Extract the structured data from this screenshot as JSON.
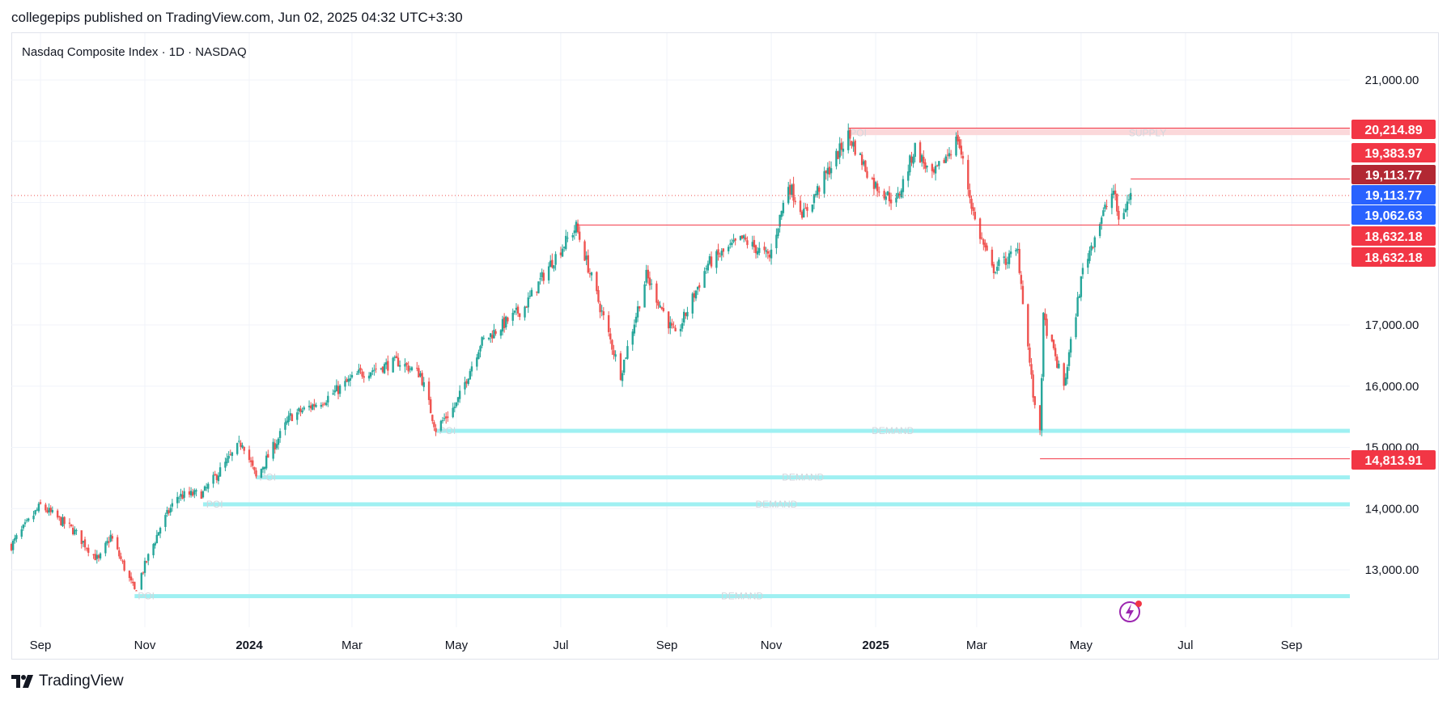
{
  "header": {
    "publisher_line": "collegepips published on TradingView.com, Jun 02, 2025 04:32 UTC+3:30"
  },
  "footer": {
    "brand": "TradingView",
    "logo_icon": "tradingview-logo-icon"
  },
  "colors": {
    "up": "#26a69a",
    "down": "#ef5350",
    "level_line": "#f23645",
    "demand_zone": "#9ff0f2",
    "grid": "#f0f3fa",
    "price_tag_red": "#f23645",
    "price_tag_darkred": "#b22833",
    "price_tag_blue": "#2962ff"
  },
  "chart_data": {
    "type": "candlestick",
    "title": "Nasdaq Composite Index · 1D · NASDAQ",
    "ylim": [
      12300,
      21700
    ],
    "y_ticks": [
      "21,000.00",
      "17,000.00",
      "16,000.00",
      "15,000.00",
      "14,000.00",
      "13,000.00"
    ],
    "y_tick_values": [
      21000,
      17000,
      16000,
      15000,
      14000,
      13000
    ],
    "x_ticks": [
      {
        "label": "Sep",
        "date": "2023-09-01",
        "bold": false
      },
      {
        "label": "Nov",
        "date": "2023-11-01",
        "bold": false
      },
      {
        "label": "2024",
        "date": "2024-01-01",
        "bold": true
      },
      {
        "label": "Mar",
        "date": "2024-03-01",
        "bold": false
      },
      {
        "label": "May",
        "date": "2024-05-01",
        "bold": false
      },
      {
        "label": "Jul",
        "date": "2024-07-01",
        "bold": false
      },
      {
        "label": "Sep",
        "date": "2024-09-01",
        "bold": false
      },
      {
        "label": "Nov",
        "date": "2024-11-01",
        "bold": false
      },
      {
        "label": "2025",
        "date": "2025-01-01",
        "bold": true
      },
      {
        "label": "Mar",
        "date": "2025-03-01",
        "bold": false
      },
      {
        "label": "May",
        "date": "2025-05-01",
        "bold": false
      },
      {
        "label": "Jul",
        "date": "2025-07-01",
        "bold": false
      },
      {
        "label": "Sep",
        "date": "2025-09-01",
        "bold": false
      }
    ],
    "price_path": [
      [
        "2023-08-15",
        13400
      ],
      [
        "2023-09-01",
        14050
      ],
      [
        "2023-09-20",
        13650
      ],
      [
        "2023-10-05",
        13150
      ],
      [
        "2023-10-12",
        13550
      ],
      [
        "2023-10-26",
        12650
      ],
      [
        "2023-11-10",
        13700
      ],
      [
        "2023-11-20",
        14200
      ],
      [
        "2023-12-05",
        14250
      ],
      [
        "2023-12-28",
        15100
      ],
      [
        "2024-01-05",
        14500
      ],
      [
        "2024-01-25",
        15500
      ],
      [
        "2024-02-15",
        15800
      ],
      [
        "2024-03-05",
        16200
      ],
      [
        "2024-03-28",
        16400
      ],
      [
        "2024-04-10",
        16200
      ],
      [
        "2024-04-19",
        15300
      ],
      [
        "2024-05-01",
        15700
      ],
      [
        "2024-05-15",
        16700
      ],
      [
        "2024-06-10",
        17300
      ],
      [
        "2024-06-25",
        18000
      ],
      [
        "2024-07-10",
        18600
      ],
      [
        "2024-07-25",
        17200
      ],
      [
        "2024-08-05",
        16200
      ],
      [
        "2024-08-20",
        17800
      ],
      [
        "2024-09-06",
        16800
      ],
      [
        "2024-09-25",
        18000
      ],
      [
        "2024-10-15",
        18400
      ],
      [
        "2024-10-31",
        18100
      ],
      [
        "2024-11-11",
        19300
      ],
      [
        "2024-11-20",
        18800
      ],
      [
        "2024-12-02",
        19400
      ],
      [
        "2024-12-16",
        20100
      ],
      [
        "2024-12-31",
        19300
      ],
      [
        "2025-01-13",
        19000
      ],
      [
        "2025-01-24",
        19900
      ],
      [
        "2025-02-03",
        19400
      ],
      [
        "2025-02-18",
        20050
      ],
      [
        "2025-02-28",
        18700
      ],
      [
        "2025-03-10",
        17900
      ],
      [
        "2025-03-25",
        18200
      ],
      [
        "2025-04-04",
        15600
      ],
      [
        "2025-04-07",
        15300
      ],
      [
        "2025-04-09",
        17100
      ],
      [
        "2025-04-21",
        16000
      ],
      [
        "2025-05-02",
        17900
      ],
      [
        "2025-05-12",
        18700
      ],
      [
        "2025-05-20",
        19200
      ],
      [
        "2025-05-23",
        18700
      ],
      [
        "2025-05-30",
        19113.77
      ]
    ],
    "resistance_zone": {
      "from": "2024-12-16",
      "low": 20100,
      "high": 20214.89,
      "label": "SUPPLY",
      "poi": "POI"
    },
    "horizontal_levels": [
      {
        "from": "2024-07-10",
        "value": 18632.18
      },
      {
        "from": "2025-05-30",
        "value": 19383.97
      },
      {
        "from": "2025-04-07",
        "value": 14813.91
      }
    ],
    "demand_zones": [
      {
        "from": "2024-04-19",
        "value": 15270,
        "label": "DEMAND",
        "poi": "POI"
      },
      {
        "from": "2024-01-05",
        "value": 14510,
        "label": "DEMAND",
        "poi": "POI"
      },
      {
        "from": "2023-12-05",
        "value": 14070,
        "label": "DEMAND",
        "poi": "POI"
      },
      {
        "from": "2023-10-26",
        "value": 12570,
        "label": "DEMAND",
        "poi": "POI"
      }
    ],
    "last_price": 19113.77,
    "price_tags": [
      {
        "text": "20,214.89",
        "value": 20214.89,
        "color": "#f23645"
      },
      {
        "text": "19,383.97",
        "value": 19383.97,
        "color": "#f23645"
      },
      {
        "text": "19,113.77",
        "value": 19113.77,
        "color": "#b22833"
      },
      {
        "text": "19,113.77",
        "value": 19113.77,
        "color": "#2962ff"
      },
      {
        "text": "19,062.63",
        "value": 19062.63,
        "color": "#2962ff"
      },
      {
        "text": "18,632.18",
        "value": 18632.18,
        "color": "#f23645"
      },
      {
        "text": "18,632.18",
        "value": 18632.18,
        "color": "#f23645"
      },
      {
        "text": "14,813.91",
        "value": 14813.91,
        "color": "#f23645"
      }
    ],
    "hidden_tick_text": "21,000.00"
  }
}
